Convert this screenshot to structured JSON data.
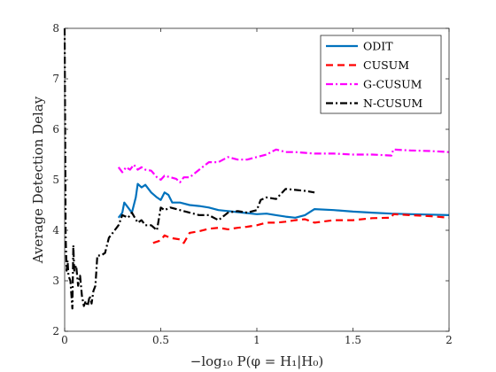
{
  "chart_data": {
    "type": "line",
    "title": "",
    "xlabel": "−log₁₀ P(φ = H₁|H₀)",
    "ylabel": "Average Detection Delay",
    "xlim": [
      0,
      2
    ],
    "ylim": [
      2,
      8
    ],
    "xticks": [
      0,
      0.5,
      1,
      1.5,
      2
    ],
    "xtick_labels": [
      "0",
      "0.5",
      "1",
      "1.5",
      "2"
    ],
    "yticks": [
      2,
      3,
      4,
      5,
      6,
      7,
      8
    ],
    "ytick_labels": [
      "2",
      "3",
      "4",
      "5",
      "6",
      "7",
      "8"
    ],
    "grid": false,
    "legend_position": "top-right",
    "series": [
      {
        "name": "ODIT",
        "color": "#0072BD",
        "dash": "solid",
        "x": [
          0.28,
          0.3,
          0.31,
          0.33,
          0.35,
          0.37,
          0.38,
          0.4,
          0.42,
          0.45,
          0.48,
          0.5,
          0.52,
          0.54,
          0.56,
          0.6,
          0.65,
          0.7,
          0.75,
          0.8,
          0.85,
          0.9,
          0.95,
          1.0,
          1.05,
          1.1,
          1.15,
          1.2,
          1.25,
          1.3,
          1.4,
          1.5,
          1.6,
          1.7,
          1.8,
          1.9,
          2.0
        ],
        "y": [
          4.25,
          4.35,
          4.55,
          4.45,
          4.35,
          4.65,
          4.92,
          4.85,
          4.9,
          4.75,
          4.65,
          4.6,
          4.75,
          4.7,
          4.55,
          4.55,
          4.5,
          4.48,
          4.45,
          4.4,
          4.38,
          4.36,
          4.34,
          4.32,
          4.33,
          4.3,
          4.27,
          4.25,
          4.3,
          4.42,
          4.4,
          4.37,
          4.35,
          4.33,
          4.32,
          4.31,
          4.3
        ]
      },
      {
        "name": "CUSUM",
        "color": "#FF0000",
        "dash": "dashed",
        "x": [
          0.46,
          0.5,
          0.52,
          0.55,
          0.6,
          0.62,
          0.65,
          0.7,
          0.75,
          0.8,
          0.85,
          0.9,
          0.95,
          1.0,
          1.05,
          1.1,
          1.15,
          1.2,
          1.25,
          1.3,
          1.4,
          1.5,
          1.6,
          1.7,
          1.71,
          1.8,
          1.9,
          2.0
        ],
        "y": [
          3.75,
          3.8,
          3.9,
          3.85,
          3.82,
          3.75,
          3.95,
          3.98,
          4.03,
          4.05,
          4.02,
          4.05,
          4.07,
          4.1,
          4.15,
          4.15,
          4.17,
          4.2,
          4.22,
          4.15,
          4.2,
          4.2,
          4.24,
          4.25,
          4.32,
          4.3,
          4.28,
          4.25
        ]
      },
      {
        "name": "G-CUSUM",
        "color": "#FF00FF",
        "dash": "dashdot",
        "x": [
          0.28,
          0.3,
          0.32,
          0.34,
          0.36,
          0.38,
          0.4,
          0.42,
          0.45,
          0.48,
          0.5,
          0.52,
          0.55,
          0.58,
          0.6,
          0.62,
          0.65,
          0.7,
          0.75,
          0.8,
          0.85,
          0.9,
          0.95,
          1.0,
          1.05,
          1.1,
          1.15,
          1.2,
          1.3,
          1.4,
          1.5,
          1.6,
          1.7,
          1.71,
          1.8,
          1.9,
          2.0
        ],
        "y": [
          5.25,
          5.15,
          5.25,
          5.2,
          5.3,
          5.2,
          5.25,
          5.2,
          5.18,
          5.05,
          5.0,
          5.08,
          5.05,
          5.02,
          4.95,
          5.05,
          5.05,
          5.2,
          5.35,
          5.35,
          5.45,
          5.4,
          5.4,
          5.45,
          5.5,
          5.6,
          5.55,
          5.55,
          5.52,
          5.52,
          5.5,
          5.5,
          5.48,
          5.6,
          5.58,
          5.57,
          5.55
        ]
      },
      {
        "name": "N-CUSUM",
        "color": "#000000",
        "dash": "dashdot",
        "x": [
          0.0,
          0.005,
          0.01,
          0.015,
          0.02,
          0.03,
          0.04,
          0.045,
          0.05,
          0.06,
          0.07,
          0.08,
          0.09,
          0.1,
          0.11,
          0.12,
          0.13,
          0.14,
          0.15,
          0.16,
          0.17,
          0.19,
          0.21,
          0.23,
          0.25,
          0.28,
          0.3,
          0.33,
          0.35,
          0.38,
          0.4,
          0.42,
          0.45,
          0.48,
          0.5,
          0.52,
          0.55,
          0.6,
          0.65,
          0.7,
          0.75,
          0.8,
          0.85,
          0.9,
          0.95,
          1.0,
          1.02,
          1.05,
          1.1,
          1.15,
          1.2,
          1.25,
          1.3
        ],
        "y": [
          8.0,
          3.9,
          3.2,
          3.4,
          3.1,
          3.0,
          2.45,
          3.7,
          3.2,
          3.3,
          2.9,
          3.1,
          2.7,
          2.5,
          2.6,
          2.5,
          2.7,
          2.55,
          2.8,
          2.9,
          3.5,
          3.5,
          3.55,
          3.85,
          3.95,
          4.1,
          4.3,
          4.25,
          4.35,
          4.15,
          4.2,
          4.1,
          4.1,
          4.0,
          4.45,
          4.4,
          4.45,
          4.4,
          4.35,
          4.3,
          4.3,
          4.2,
          4.35,
          4.38,
          4.35,
          4.4,
          4.6,
          4.65,
          4.62,
          4.82,
          4.8,
          4.78,
          4.75
        ]
      }
    ]
  }
}
